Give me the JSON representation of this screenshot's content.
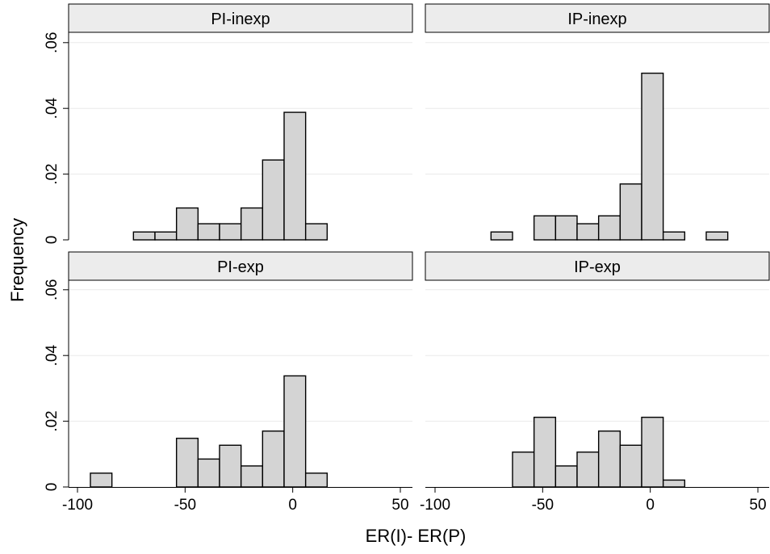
{
  "chart_data": {
    "type": "histogram",
    "xlabel": "ER(I)- ER(P)",
    "ylabel": "Frequency",
    "xlim": [
      -100,
      50
    ],
    "ylim": [
      0,
      0.06
    ],
    "xticks": [
      -100,
      -50,
      0,
      50
    ],
    "yticks": [
      0,
      0.02,
      0.04,
      0.06
    ],
    "ytick_labels": [
      "0",
      ".02",
      ".04",
      ".06"
    ],
    "bin_width": 10,
    "bar_fill": "#d4d4d4",
    "bar_stroke": "#000000",
    "grid": true,
    "panels": [
      {
        "title": "PI-inexp",
        "bins": [
          {
            "x0": -74,
            "x1": -64,
            "y": 0.0024
          },
          {
            "x0": -64,
            "x1": -54,
            "y": 0.0024
          },
          {
            "x0": -54,
            "x1": -44,
            "y": 0.0097
          },
          {
            "x0": -44,
            "x1": -34,
            "y": 0.0049
          },
          {
            "x0": -34,
            "x1": -24,
            "y": 0.0049
          },
          {
            "x0": -24,
            "x1": -14,
            "y": 0.0097
          },
          {
            "x0": -14,
            "x1": -4,
            "y": 0.0243
          },
          {
            "x0": -4,
            "x1": 6,
            "y": 0.0388
          },
          {
            "x0": 6,
            "x1": 16,
            "y": 0.0049
          }
        ]
      },
      {
        "title": "IP-inexp",
        "bins": [
          {
            "x0": -74,
            "x1": -64,
            "y": 0.0024
          },
          {
            "x0": -54,
            "x1": -44,
            "y": 0.0073
          },
          {
            "x0": -44,
            "x1": -34,
            "y": 0.0073
          },
          {
            "x0": -34,
            "x1": -24,
            "y": 0.0049
          },
          {
            "x0": -24,
            "x1": -14,
            "y": 0.0073
          },
          {
            "x0": -14,
            "x1": -4,
            "y": 0.017
          },
          {
            "x0": -4,
            "x1": 6,
            "y": 0.0507
          },
          {
            "x0": 6,
            "x1": 16,
            "y": 0.0024
          },
          {
            "x0": 26,
            "x1": 36,
            "y": 0.0024
          }
        ]
      },
      {
        "title": "PI-exp",
        "bins": [
          {
            "x0": -94,
            "x1": -84,
            "y": 0.0042
          },
          {
            "x0": -54,
            "x1": -44,
            "y": 0.0148
          },
          {
            "x0": -44,
            "x1": -34,
            "y": 0.0085
          },
          {
            "x0": -34,
            "x1": -24,
            "y": 0.0127
          },
          {
            "x0": -24,
            "x1": -14,
            "y": 0.0064
          },
          {
            "x0": -14,
            "x1": -4,
            "y": 0.017
          },
          {
            "x0": -4,
            "x1": 6,
            "y": 0.0338
          },
          {
            "x0": 6,
            "x1": 16,
            "y": 0.0042
          }
        ]
      },
      {
        "title": "IP-exp",
        "bins": [
          {
            "x0": -64,
            "x1": -54,
            "y": 0.0106
          },
          {
            "x0": -54,
            "x1": -44,
            "y": 0.0212
          },
          {
            "x0": -44,
            "x1": -34,
            "y": 0.0064
          },
          {
            "x0": -34,
            "x1": -24,
            "y": 0.0106
          },
          {
            "x0": -24,
            "x1": -14,
            "y": 0.017
          },
          {
            "x0": -14,
            "x1": -4,
            "y": 0.0127
          },
          {
            "x0": -4,
            "x1": 6,
            "y": 0.0212
          },
          {
            "x0": 6,
            "x1": 16,
            "y": 0.0021
          }
        ]
      }
    ]
  }
}
